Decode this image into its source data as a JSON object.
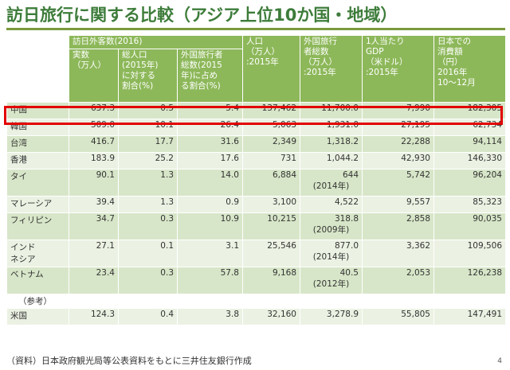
{
  "title": "訪日旅行に関する比較（アジア上位10か国・地域）",
  "header": {
    "group": "訪日外客数(2016)",
    "col1": "実数\n（万人）",
    "col2": "総人口\n(2015年)\nに対する\n割合(%)",
    "col3": "外国旅行者\n総数(2015\n年)に占め\nる割合(%)",
    "col4": "人口\n（万人）\n:2015年",
    "col5": "外国旅行\n者総数\n（万人）\n:2015年",
    "col6": "1人当たり\nGDP\n（米ドル）\n:2015年",
    "col7": "日本での\n消費額\n（円）\n2016年\n10〜12月"
  },
  "rows": [
    {
      "country": "中国",
      "c1": "637.3",
      "c2": "0.5",
      "c3": "5.4",
      "c4": "137,462",
      "c5": "11,700.0",
      "c6": "7,990",
      "c7": "182,305"
    },
    {
      "country": "韓国",
      "c1": "509.0",
      "c2": "10.1",
      "c3": "26.4",
      "c4": "5,063",
      "c5": "1,931.0",
      "c6": "27,195",
      "c7": "62,734"
    },
    {
      "country": "台湾",
      "c1": "416.7",
      "c2": "17.7",
      "c3": "31.6",
      "c4": "2,349",
      "c5": "1,318.2",
      "c6": "22,288",
      "c7": "94,114"
    },
    {
      "country": "香港",
      "c1": "183.9",
      "c2": "25.2",
      "c3": "17.6",
      "c4": "731",
      "c5": "1,044.2",
      "c6": "42,930",
      "c7": "146,330"
    },
    {
      "country": "タイ",
      "c1": "90.1",
      "c2": "1.3",
      "c3": "14.0",
      "c4": "6,884",
      "c5": "644",
      "c5_note": "(2014年)",
      "c6": "5,742",
      "c7": "96,204"
    },
    {
      "country": "マレーシア",
      "c1": "39.4",
      "c2": "1.3",
      "c3": "0.9",
      "c4": "3,100",
      "c5": "4,522",
      "c6": "9,557",
      "c7": "85,323"
    },
    {
      "country": "フィリピン",
      "c1": "34.7",
      "c2": "0.3",
      "c3": "10.9",
      "c4": "10,215",
      "c5": "318.8",
      "c5_note": "(2009年)",
      "c6": "2,858",
      "c7": "90,035"
    },
    {
      "country": "インド\nネシア",
      "c1": "27.1",
      "c2": "0.1",
      "c3": "3.1",
      "c4": "25,546",
      "c5": "877.0",
      "c5_note": "(2014年)",
      "c6": "3,362",
      "c7": "109,506"
    },
    {
      "country": "ベトナム",
      "c1": "23.4",
      "c2": "0.3",
      "c3": "57.8",
      "c4": "9,168",
      "c5": "40.5",
      "c5_note": "(2012年)",
      "c6": "2,053",
      "c7": "126,238"
    }
  ],
  "reference_label": "（参考）",
  "reference_row": {
    "country": "米国",
    "c1": "124.3",
    "c2": "0.4",
    "c3": "3.8",
    "c4": "32,160",
    "c5": "3,278.9",
    "c6": "55,805",
    "c7": "147,491"
  },
  "source": "（資料）日本政府観光局等公表資料をもとに三井住友銀行作成",
  "page_number": "4",
  "colors": {
    "title": "#3d7c3a",
    "header": "#8db85a",
    "row_dark": "#d7e6c8",
    "row_light": "#ebf2e3",
    "highlight": "#e20000"
  }
}
